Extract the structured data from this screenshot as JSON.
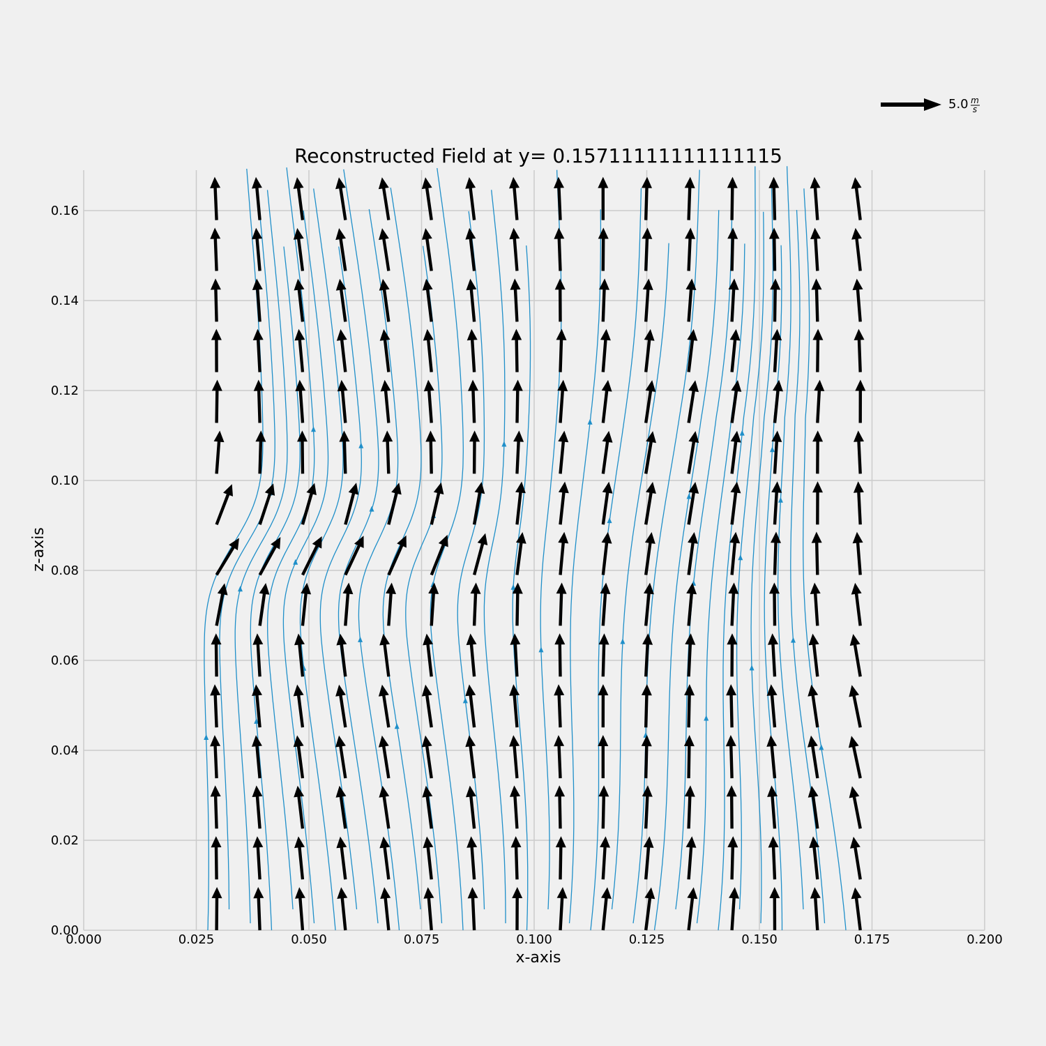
{
  "chart_data": {
    "type": "vector_field",
    "title": "Reconstructed Field at y= 0.15711111111111115",
    "xlabel": "x-axis",
    "ylabel": "z-axis",
    "xlim": [
      0.0,
      0.2
    ],
    "ylim": [
      0.0,
      0.169
    ],
    "xticks": [
      "0.000",
      "0.025",
      "0.050",
      "0.075",
      "0.100",
      "0.125",
      "0.150",
      "0.175",
      "0.200"
    ],
    "yticks": [
      "0.00",
      "0.02",
      "0.04",
      "0.06",
      "0.08",
      "0.10",
      "0.12",
      "0.14",
      "0.16"
    ],
    "grid": true,
    "quiver_key": {
      "value": 5.0,
      "label": "5.0",
      "unit_num": "m",
      "unit_den": "s"
    },
    "grid_x": [
      0.0295,
      0.0391,
      0.0486,
      0.0581,
      0.0677,
      0.0772,
      0.0867,
      0.0962,
      0.1058,
      0.1153,
      0.1248,
      0.1343,
      0.1439,
      0.1534,
      0.1629,
      0.1724
    ],
    "grid_z": [
      0.0,
      0.0113,
      0.0226,
      0.0338,
      0.0451,
      0.0564,
      0.0677,
      0.079,
      0.0902,
      0.1015,
      0.1128,
      0.1241,
      0.1353,
      0.1466,
      0.1579
    ],
    "streamline_color": "#1f8fc9",
    "arrow_color": "#000000"
  }
}
